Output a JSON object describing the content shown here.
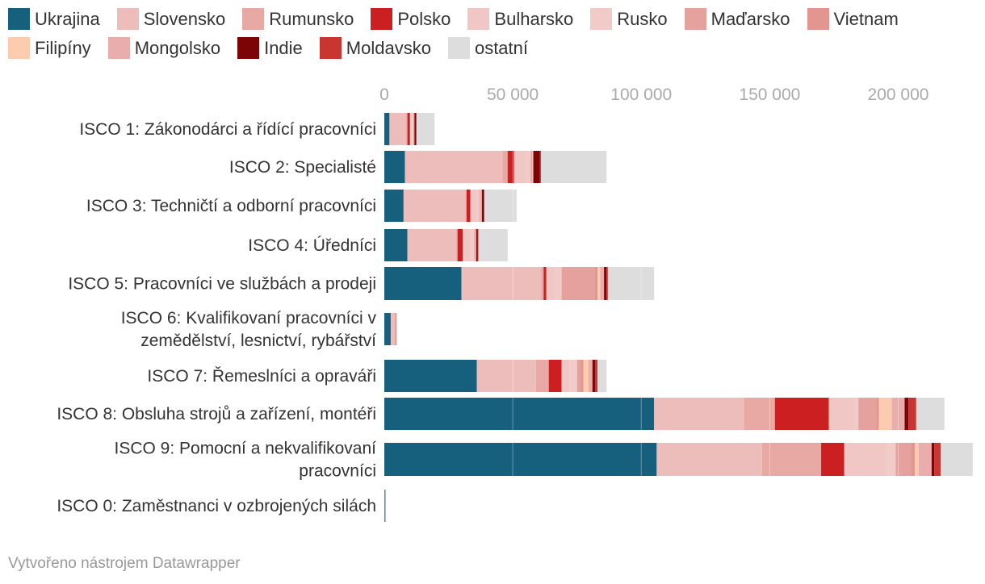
{
  "chart_data": {
    "type": "bar",
    "orientation": "horizontal",
    "stacked": true,
    "title": "",
    "xlabel": "",
    "ylabel": "",
    "xlim": [
      0,
      230000
    ],
    "ticks": [
      {
        "value": 0,
        "label": "0"
      },
      {
        "value": 50000,
        "label": "50 000"
      },
      {
        "value": 100000,
        "label": "100 000"
      },
      {
        "value": 150000,
        "label": "150 000"
      },
      {
        "value": 200000,
        "label": "200 000"
      }
    ],
    "legend_position": "top",
    "categories": [
      [
        "ISCO 1: Zákonodárci a řídící pracovníci"
      ],
      [
        "ISCO 2: Specialisté"
      ],
      [
        "ISCO 3: Techničtí a odborní pracovníci"
      ],
      [
        "ISCO 4: Úředníci"
      ],
      [
        "ISCO 5: Pracovníci ve službách a prodeji"
      ],
      [
        "ISCO 6: Kvalifikovaní pracovníci v",
        "zemědělství, lesnictví, rybářství"
      ],
      [
        "ISCO 7: Řemeslníci a opraváři"
      ],
      [
        "ISCO 8: Obsluha strojů a zařízení, montéři"
      ],
      [
        "ISCO 9: Pomocní a nekvalifikovaní",
        "pracovníci"
      ],
      [
        "ISCO 0: Zaměstnanci v ozbrojených silách"
      ]
    ],
    "series": [
      {
        "name": "Ukrajina",
        "color": "#17607d",
        "values": [
          2000,
          8000,
          7500,
          9000,
          30000,
          2500,
          36000,
          105000,
          106000,
          200
        ]
      },
      {
        "name": "Slovensko",
        "color": "#ecbdbb",
        "values": [
          6500,
          38000,
          24000,
          19000,
          31000,
          1500,
          23000,
          35000,
          41000,
          100
        ]
      },
      {
        "name": "Rumunsko",
        "color": "#e8a9a5",
        "values": [
          500,
          2000,
          500,
          500,
          1000,
          100,
          5000,
          12000,
          23000,
          0
        ]
      },
      {
        "name": "Polsko",
        "color": "#cb1f21",
        "values": [
          1000,
          2500,
          1500,
          2000,
          1000,
          100,
          5000,
          21000,
          9000,
          100
        ]
      },
      {
        "name": "Bulharsko",
        "color": "#f0c7c4",
        "values": [
          300,
          4500,
          2000,
          3000,
          3500,
          200,
          3000,
          10000,
          17000,
          0
        ]
      },
      {
        "name": "Rusko",
        "color": "#f1cbc8",
        "values": [
          1000,
          2000,
          1500,
          1500,
          2500,
          200,
          3000,
          1500,
          3000,
          0
        ]
      },
      {
        "name": "Maďarsko",
        "color": "#e5a19d",
        "values": [
          200,
          300,
          300,
          200,
          13000,
          100,
          1500,
          7000,
          6000,
          0
        ]
      },
      {
        "name": "Vietnam",
        "color": "#e39590",
        "values": [
          100,
          200,
          200,
          200,
          1000,
          100,
          1000,
          1000,
          1500,
          0
        ]
      },
      {
        "name": "Filipíny",
        "color": "#fdcbb0",
        "values": [
          50,
          200,
          200,
          100,
          1000,
          0,
          2000,
          5000,
          1500,
          0
        ]
      },
      {
        "name": "Mongolsko",
        "color": "#e9aeac",
        "values": [
          100,
          300,
          300,
          300,
          1500,
          0,
          1500,
          5000,
          5000,
          0
        ]
      },
      {
        "name": "Indie",
        "color": "#7b0506",
        "values": [
          500,
          2500,
          700,
          500,
          1000,
          0,
          1000,
          1500,
          1000,
          0
        ]
      },
      {
        "name": "Moldavsko",
        "color": "#c93531",
        "values": [
          300,
          500,
          300,
          300,
          500,
          0,
          1000,
          3000,
          2500,
          0
        ]
      },
      {
        "name": "ostatní",
        "color": "#dddddd",
        "values": [
          7000,
          25500,
          12500,
          11400,
          18000,
          200,
          3500,
          11000,
          12500,
          100
        ]
      }
    ]
  },
  "footer": {
    "credit": "Vytvořeno nástrojem Datawrapper"
  }
}
